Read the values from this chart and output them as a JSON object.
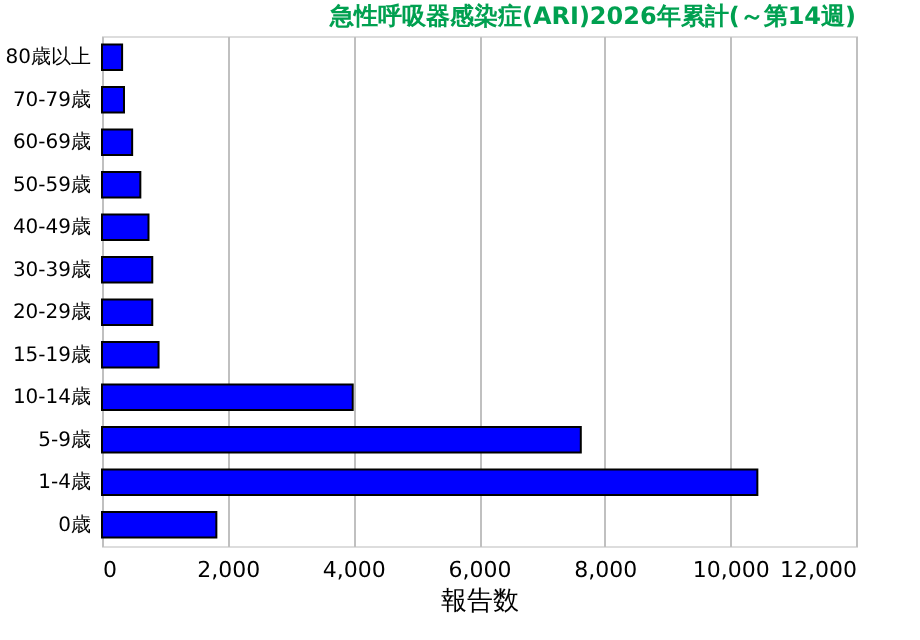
{
  "chart_data": {
    "type": "bar",
    "orientation": "horizontal",
    "title": "急性呼吸器感染症(ARI)2026年累計(～第14週)",
    "categories": [
      "80歳以上",
      "70-79歳",
      "60-69歳",
      "50-59歳",
      "40-49歳",
      "30-39歳",
      "20-29歳",
      "15-19歳",
      "10-14歳",
      "5-9歳",
      "1-4歳",
      "0歳"
    ],
    "values": [
      320,
      350,
      480,
      610,
      740,
      800,
      800,
      900,
      3990,
      7620,
      10430,
      1820
    ],
    "color": "#0000ff",
    "xlabel": "報告数",
    "xlim": [
      0,
      12000
    ],
    "xticks": [
      {
        "value": 0,
        "label": "0"
      },
      {
        "value": 2000,
        "label": "2,000"
      },
      {
        "value": 4000,
        "label": "4,000"
      },
      {
        "value": 6000,
        "label": "6,000"
      },
      {
        "value": 8000,
        "label": "8,000"
      },
      {
        "value": 10000,
        "label": "10,000"
      },
      {
        "value": 12000,
        "label": "12,000"
      }
    ],
    "grid": "x"
  }
}
